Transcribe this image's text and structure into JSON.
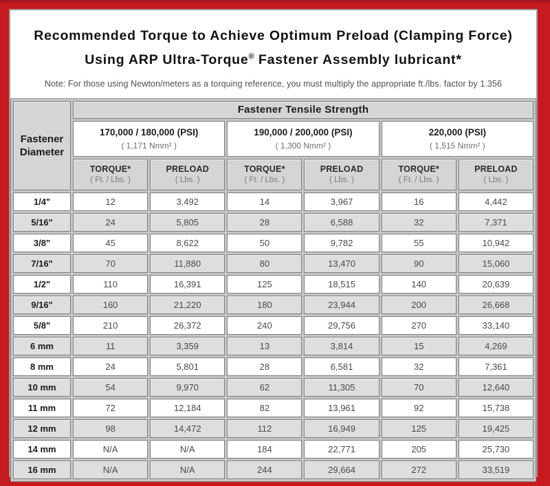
{
  "page": {
    "title_line1": "Recommended Torque to Achieve Optimum Preload (Clamping Force)",
    "title_line2_pre": "Using ARP Ultra-Torque",
    "title_line2_sup": "®",
    "title_line2_post": " Fastener Assembly lubricant*",
    "note": "Note: For those using Newton/meters as a torquing reference, you must multiply the appropriate ft./lbs. factor by 1.356"
  },
  "table": {
    "tensile_header": "Fastener Tensile Strength",
    "diameter_header_line1": "Fastener",
    "diameter_header_line2": "Diameter",
    "torque_label": "TORQUE*",
    "torque_sub": "( Ft. / Lbs. )",
    "preload_label": "PRELOAD",
    "preload_sub": "( Lbs. )",
    "strength_groups": [
      {
        "psi": "170,000 / 180,000 (PSI)",
        "nmm": "( 1,171 Nmm² )"
      },
      {
        "psi": "190,000 / 200,000 (PSI)",
        "nmm": "( 1,300 Nmm² )"
      },
      {
        "psi": "220,000 (PSI)",
        "nmm": "( 1,515 Nmm² )"
      }
    ],
    "rows": [
      {
        "diameter": "1/4\"",
        "values": [
          "12",
          "3,492",
          "14",
          "3,967",
          "16",
          "4,442"
        ]
      },
      {
        "diameter": "5/16\"",
        "values": [
          "24",
          "5,805",
          "28",
          "6,588",
          "32",
          "7,371"
        ]
      },
      {
        "diameter": "3/8\"",
        "values": [
          "45",
          "8,622",
          "50",
          "9,782",
          "55",
          "10,942"
        ]
      },
      {
        "diameter": "7/16\"",
        "values": [
          "70",
          "11,880",
          "80",
          "13,470",
          "90",
          "15,060"
        ]
      },
      {
        "diameter": "1/2\"",
        "values": [
          "110",
          "16,391",
          "125",
          "18,515",
          "140",
          "20,639"
        ]
      },
      {
        "diameter": "9/16\"",
        "values": [
          "160",
          "21,220",
          "180",
          "23,944",
          "200",
          "26,668"
        ]
      },
      {
        "diameter": "5/8\"",
        "values": [
          "210",
          "26,372",
          "240",
          "29,756",
          "270",
          "33,140"
        ]
      },
      {
        "diameter": "6 mm",
        "values": [
          "11",
          "3,359",
          "13",
          "3,814",
          "15",
          "4,269"
        ]
      },
      {
        "diameter": "8 mm",
        "values": [
          "24",
          "5,801",
          "28",
          "6,581",
          "32",
          "7,361"
        ]
      },
      {
        "diameter": "10 mm",
        "values": [
          "54",
          "9,970",
          "62",
          "11,305",
          "70",
          "12,640"
        ]
      },
      {
        "diameter": "11 mm",
        "values": [
          "72",
          "12,184",
          "82",
          "13,961",
          "92",
          "15,738"
        ]
      },
      {
        "diameter": "12 mm",
        "values": [
          "98",
          "14,472",
          "112",
          "16,949",
          "125",
          "19,425"
        ]
      },
      {
        "diameter": "14 mm",
        "values": [
          "N/A",
          "N/A",
          "184",
          "22,771",
          "205",
          "25,730"
        ]
      },
      {
        "diameter": "16 mm",
        "values": [
          "N/A",
          "N/A",
          "244",
          "29,664",
          "272",
          "33,519"
        ]
      }
    ]
  },
  "colors": {
    "frame_red": "#c41a20",
    "frame_red_dark": "#9e161b",
    "box_border": "#a09d9b",
    "table_gap": "#c6c6c6",
    "cell_border": "#7c7c7c",
    "header_gray": "#d5d5d5",
    "row_alt_gray": "#dedede"
  }
}
